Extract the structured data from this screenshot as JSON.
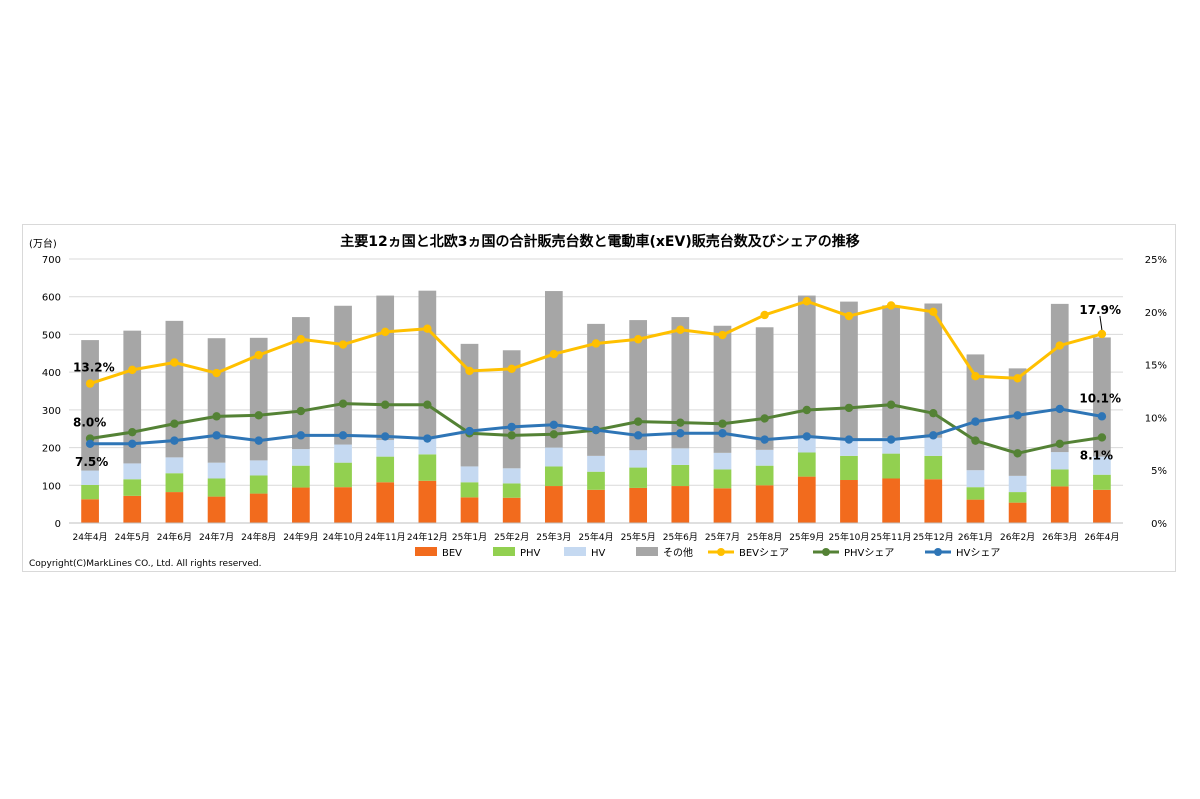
{
  "chart_data": {
    "type": "bar",
    "title": "主要12ヵ国と北欧3ヵ国の合計販売台数と電動車(xEV)販売台数及びシェアの推移",
    "ylabel": "(万台)",
    "ylim": [
      0,
      700
    ],
    "yticks": [
      "0",
      "100",
      "200",
      "300",
      "400",
      "500",
      "600",
      "700"
    ],
    "y2lim": [
      0,
      25
    ],
    "y2ticks": [
      "0%",
      "5%",
      "10%",
      "15%",
      "20%",
      "25%"
    ],
    "grid": true,
    "legend_position": "bottom",
    "categories": [
      "24年4月",
      "24年5月",
      "24年6月",
      "24年7月",
      "24年8月",
      "24年9月",
      "24年10月",
      "24年11月",
      "24年12月",
      "25年1月",
      "25年2月",
      "25年3月",
      "25年4月",
      "25年5月",
      "25年6月",
      "25年7月",
      "25年8月",
      "25年9月",
      "25年10月",
      "25年11月",
      "25年12月",
      "26年1月",
      "26年2月",
      "26年3月",
      "26年4月"
    ],
    "bar_series": [
      {
        "name": "BEV",
        "color": "#f26b1d",
        "values": [
          63,
          72,
          82,
          70,
          78,
          94,
          95,
          108,
          112,
          68,
          67,
          98,
          88,
          93,
          98,
          92,
          100,
          123,
          114,
          118,
          116,
          62,
          54,
          97,
          88
        ]
      },
      {
        "name": "PHV",
        "color": "#92d050",
        "values": [
          38,
          44,
          50,
          48,
          48,
          58,
          65,
          68,
          70,
          40,
          38,
          52,
          48,
          54,
          56,
          50,
          52,
          64,
          64,
          66,
          62,
          33,
          28,
          45,
          40
        ]
      },
      {
        "name": "HV",
        "color": "#c5d9f1",
        "values": [
          38,
          42,
          42,
          42,
          40,
          44,
          48,
          44,
          44,
          42,
          40,
          50,
          42,
          46,
          44,
          44,
          42,
          44,
          42,
          42,
          48,
          45,
          43,
          46,
          48
        ]
      },
      {
        "name": "その他",
        "color": "#a6a6a6",
        "values": [
          346,
          352,
          362,
          330,
          325,
          350,
          368,
          383,
          390,
          325,
          313,
          415,
          350,
          345,
          348,
          337,
          325,
          372,
          367,
          351,
          356,
          307,
          285,
          393,
          316
        ]
      }
    ],
    "line_series": [
      {
        "name": "BEVシェア",
        "color": "#ffc000",
        "values": [
          13.2,
          14.5,
          15.2,
          14.2,
          15.9,
          17.4,
          16.9,
          18.1,
          18.4,
          14.4,
          14.6,
          16.0,
          17.0,
          17.4,
          18.3,
          17.8,
          19.7,
          21.0,
          19.6,
          20.6,
          20.0,
          13.9,
          13.7,
          16.8,
          17.9
        ]
      },
      {
        "name": "PHVシェア",
        "color": "#548235",
        "values": [
          8.0,
          8.6,
          9.4,
          10.1,
          10.2,
          10.6,
          11.3,
          11.2,
          11.2,
          8.5,
          8.3,
          8.4,
          8.8,
          9.6,
          9.5,
          9.4,
          9.9,
          10.7,
          10.9,
          11.2,
          10.4,
          7.8,
          6.6,
          7.5,
          8.1
        ]
      },
      {
        "name": "HVシェア",
        "color": "#2e75b6",
        "values": [
          7.5,
          7.5,
          7.8,
          8.3,
          7.8,
          8.3,
          8.3,
          8.2,
          8.0,
          8.7,
          9.1,
          9.3,
          8.8,
          8.3,
          8.5,
          8.5,
          7.9,
          8.2,
          7.9,
          7.9,
          8.3,
          9.6,
          10.2,
          10.8,
          10.1
        ]
      }
    ],
    "annotations": [
      {
        "text": "13.2%"
      },
      {
        "text": "8.0%"
      },
      {
        "text": "7.5%"
      },
      {
        "text": "17.9%"
      },
      {
        "text": "10.1%"
      },
      {
        "text": "8.1%"
      }
    ],
    "copyright": "Copyright(C)MarkLines CO., Ltd. All rights reserved."
  }
}
